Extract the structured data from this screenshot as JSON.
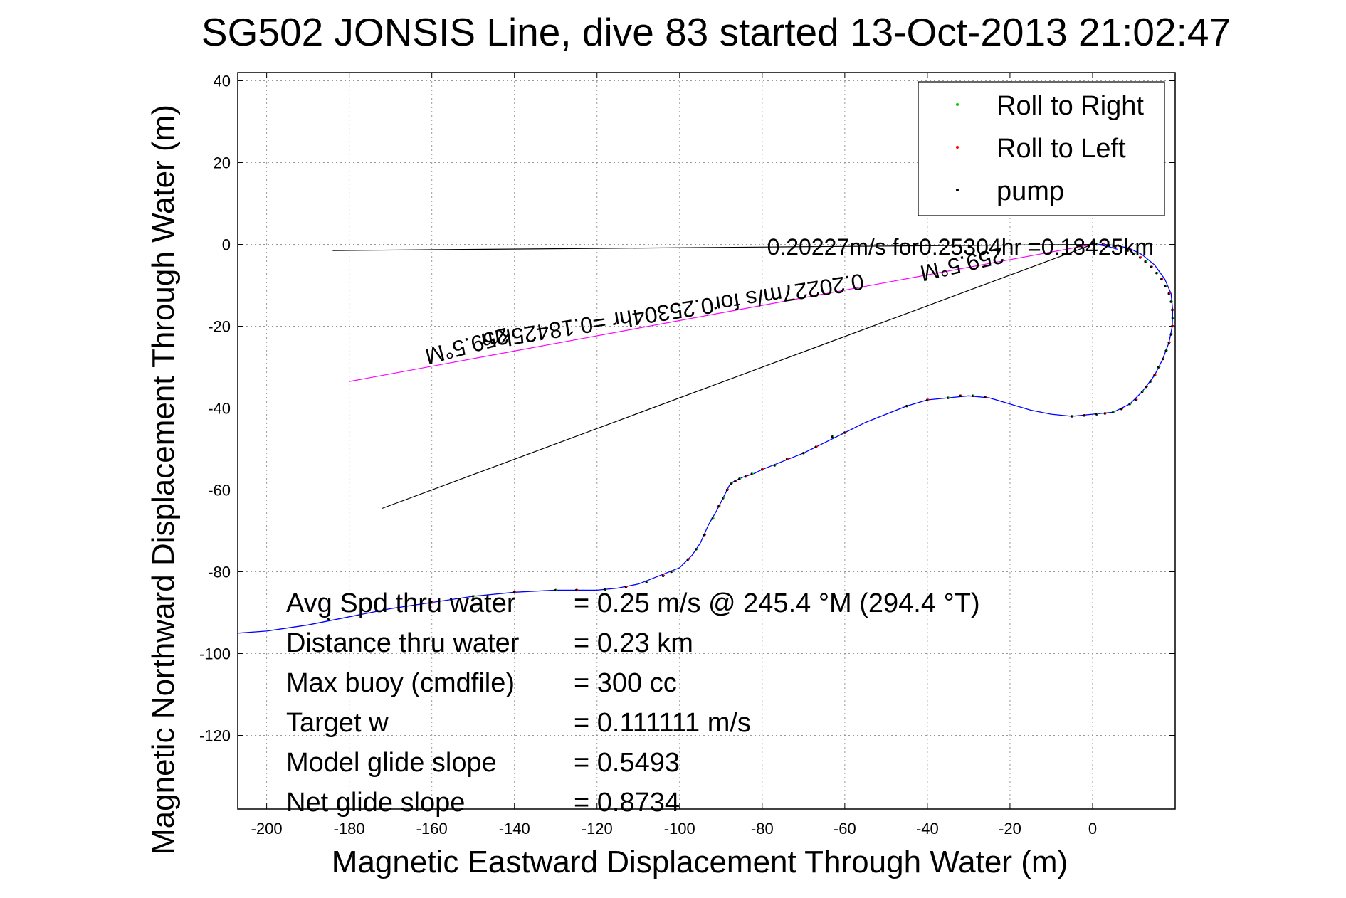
{
  "chart_data": {
    "type": "line",
    "title": "SG502 JONSIS Line, dive 83 started 13-Oct-2013 21:02:47",
    "xlabel": "Magnetic Eastward Displacement Through Water (m)",
    "ylabel": "Magnetic Northward Displacement Through Water (m)",
    "xlim": [
      -207,
      20
    ],
    "ylim": [
      -138,
      42
    ],
    "xticks": [
      -200,
      -180,
      -160,
      -140,
      -120,
      -100,
      -80,
      -60,
      -40,
      -20,
      0
    ],
    "yticks": [
      40,
      20,
      0,
      -20,
      -40,
      -60,
      -80,
      -100,
      -120
    ],
    "grid": true,
    "legend_position": "top-right",
    "legend": [
      {
        "label": "Roll to Right",
        "color": "#00cc00"
      },
      {
        "label": "Roll to Left",
        "color": "#ff0000"
      },
      {
        "label": "pump",
        "color": "#000000"
      }
    ],
    "track": {
      "color": "#0000ff",
      "x": [
        -207,
        -200,
        -190,
        -180,
        -170,
        -160,
        -150,
        -140,
        -130,
        -120,
        -115,
        -110,
        -105,
        -100,
        -97,
        -95,
        -93,
        -91,
        -90,
        -89,
        -88,
        -87,
        -85,
        -82,
        -80,
        -75,
        -70,
        -65,
        -60,
        -55,
        -50,
        -45,
        -40,
        -35,
        -30,
        -25,
        -20,
        -15,
        -10,
        -5,
        0,
        5,
        9,
        12,
        15,
        17,
        18.5,
        19.3,
        19.4,
        19,
        17.5,
        15,
        12,
        9,
        6,
        3,
        0,
        2,
        4,
        6
      ],
      "y": [
        -95,
        -94.5,
        -93,
        -91,
        -89,
        -87.5,
        -86,
        -85,
        -84.5,
        -84.5,
        -84,
        -83,
        -81,
        -79,
        -76,
        -73,
        -68.5,
        -65,
        -63,
        -61,
        -59,
        -58,
        -57,
        -56,
        -55,
        -53,
        -51,
        -48.5,
        -46,
        -43.5,
        -41.5,
        -39.5,
        -38,
        -37.5,
        -37,
        -37.5,
        -39,
        -40.5,
        -41.5,
        -42,
        -41.5,
        -41,
        -39,
        -36,
        -32,
        -28,
        -24,
        -20,
        -16,
        -12,
        -8.5,
        -5,
        -2.5,
        -1,
        -0.3,
        0,
        0,
        -0.2,
        -0.6,
        -1.2
      ]
    },
    "roll_points": [
      [
        -185,
        -91.5
      ],
      [
        -160,
        -87.5
      ],
      [
        -150,
        -86
      ],
      [
        -140,
        -85
      ],
      [
        -130,
        -84.5
      ],
      [
        -125,
        -84.5
      ],
      [
        -118,
        -84.3
      ],
      [
        -113,
        -83.7
      ],
      [
        -108,
        -82.5
      ],
      [
        -104,
        -81
      ],
      [
        -102,
        -80
      ],
      [
        -98,
        -77
      ],
      [
        -96,
        -74.5
      ],
      [
        -94,
        -71
      ],
      [
        -92,
        -67
      ],
      [
        -90.5,
        -64
      ],
      [
        -89.5,
        -62
      ],
      [
        -88.5,
        -60
      ],
      [
        -87.5,
        -58.5
      ],
      [
        -86.5,
        -57.8
      ],
      [
        -85.5,
        -57.3
      ],
      [
        -84,
        -56.7
      ],
      [
        -82.5,
        -56.1
      ],
      [
        -80,
        -55
      ],
      [
        -77,
        -54
      ],
      [
        -74,
        -52.5
      ],
      [
        -70,
        -51
      ],
      [
        -67,
        -49.5
      ],
      [
        -63,
        -47
      ],
      [
        -60,
        -46
      ],
      [
        -45,
        -39.5
      ],
      [
        -40,
        -38
      ],
      [
        -35,
        -37.5
      ],
      [
        -32,
        -37
      ],
      [
        -29,
        -37
      ],
      [
        -26,
        -37.3
      ],
      [
        -5,
        -42
      ],
      [
        -2,
        -41.8
      ],
      [
        1,
        -41.5
      ],
      [
        3,
        -41.3
      ],
      [
        5,
        -41
      ],
      [
        7,
        -40.2
      ],
      [
        9,
        -39
      ],
      [
        10.5,
        -38
      ],
      [
        12,
        -36
      ],
      [
        13,
        -34.8
      ],
      [
        14,
        -33.5
      ],
      [
        15,
        -32
      ],
      [
        16,
        -30
      ],
      [
        17,
        -28
      ],
      [
        17.8,
        -26
      ],
      [
        18.5,
        -24
      ],
      [
        19,
        -22
      ],
      [
        19.3,
        -20
      ],
      [
        19.4,
        -18
      ],
      [
        19.3,
        -16
      ],
      [
        19,
        -14
      ],
      [
        18.5,
        -12
      ],
      [
        17.7,
        -10.2
      ],
      [
        16.7,
        -8.5
      ],
      [
        15.5,
        -7
      ],
      [
        14.2,
        -5.5
      ],
      [
        12.8,
        -4.2
      ],
      [
        11.5,
        -3.2
      ],
      [
        10,
        -2.3
      ],
      [
        8.5,
        -1.5
      ],
      [
        7,
        -0.9
      ],
      [
        5.5,
        -0.5
      ],
      [
        4,
        -0.2
      ],
      [
        2.5,
        0
      ],
      [
        1,
        0
      ],
      [
        0,
        0
      ]
    ],
    "reference_lines": [
      {
        "name": "heading-line-magenta",
        "color": "#ff00ff",
        "x": [
          0,
          -180
        ],
        "y": [
          0,
          -33.5
        ]
      },
      {
        "name": "net-displacement-line",
        "color": "#000000",
        "x": [
          0,
          -172
        ],
        "y": [
          0,
          -64.5
        ]
      },
      {
        "name": "horizontal-reference-line",
        "color": "#000000",
        "x": [
          0,
          -184
        ],
        "y": [
          0,
          -1.5
        ]
      }
    ],
    "annotations_rotated": [
      {
        "text": "259.5°M",
        "x": -152,
        "y": -23,
        "rotation": 165
      },
      {
        "text": "0.20227m/s for0.25304hr =0.18425km",
        "x": -102,
        "y": -14.5,
        "rotation": 171
      },
      {
        "text": "259.5°M",
        "x": -32,
        "y": -3,
        "rotation": 167
      },
      {
        "text": "0.20227m/s for0.25304hr =0.18425km",
        "x": -32,
        "y": -2.5,
        "rotation": 0
      }
    ],
    "stats": [
      {
        "label": "Avg Spd thru water",
        "value": "=  0.25 m/s @ 245.4 °M (294.4 °T)"
      },
      {
        "label": "Distance thru water",
        "value": "=  0.23 km"
      },
      {
        "label": "Max buoy (cmdfile)",
        "value": "= 300 cc"
      },
      {
        "label": "Target w",
        "value": "= 0.111111 m/s"
      },
      {
        "label": "Model glide slope",
        "value": "= 0.5493"
      },
      {
        "label": "Net glide slope",
        "value": "= 0.8734"
      }
    ]
  }
}
